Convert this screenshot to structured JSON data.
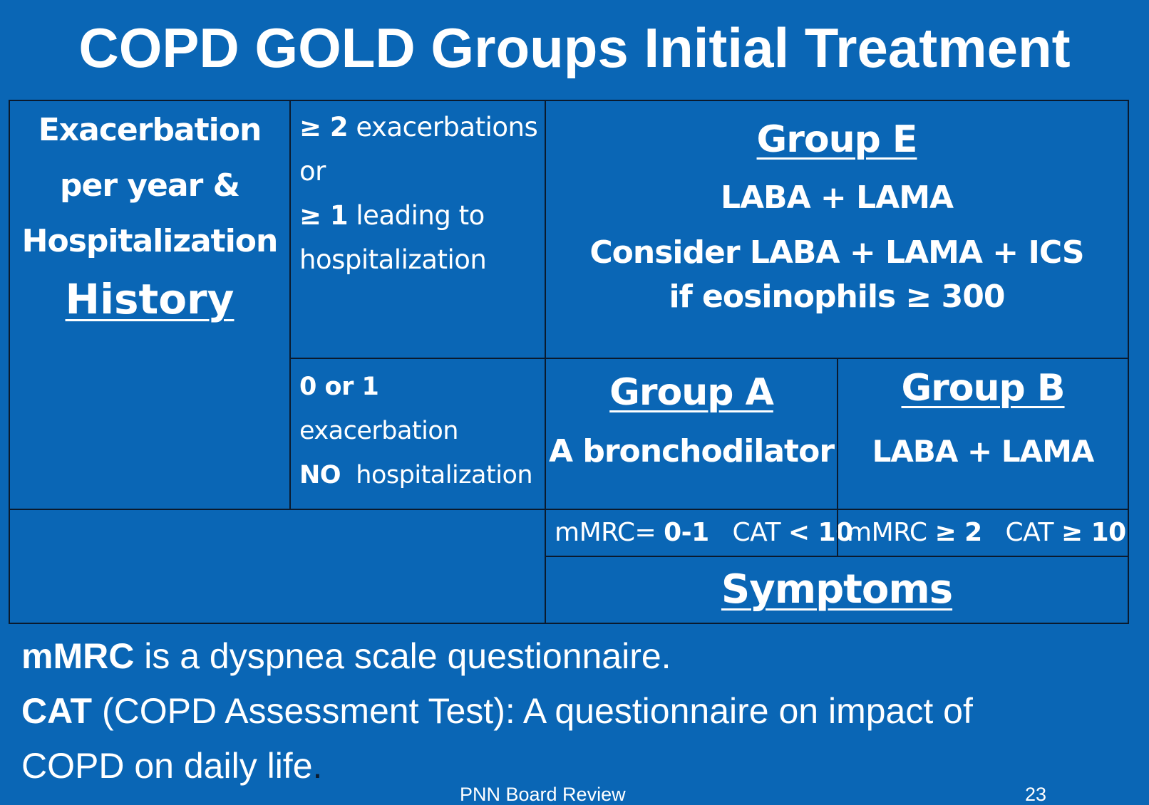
{
  "slide": {
    "title": "COPD GOLD Groups Initial Treatment",
    "footer_text": "PNN Board Review",
    "page_number": "23"
  },
  "history": {
    "line1": "Exacerbation",
    "line2": "per year &",
    "line3": "Hospitalization",
    "label": "History"
  },
  "criteria_high": {
    "l1_bold": "≥ 2",
    "l1_rest": " exacerbations",
    "l2": "or",
    "l3_bold": "≥  1",
    "l3_rest": " leading to",
    "l4": "hospitalization"
  },
  "criteria_low": {
    "l1_bold": "0 or 1",
    "l1_rest": " exacerbation",
    "l2_bold": "NO",
    "l2_rest": "  hospitalization"
  },
  "group_e": {
    "heading": "Group E",
    "treatment": "LABA + LAMA",
    "consider_line1": "Consider LABA + LAMA + ICS",
    "consider_line2": "if eosinophils ≥ 300"
  },
  "group_a": {
    "heading": "Group A",
    "treatment": "A bronchodilator"
  },
  "group_b": {
    "heading": "Group B",
    "treatment": "LABA + LAMA"
  },
  "symptoms_a": {
    "mmrc_label": "mMRC= ",
    "mmrc_value": "0-1",
    "cat_label": "   CAT ",
    "cat_value": "< 10"
  },
  "symptoms_b": {
    "mmrc_label": "mMRC ",
    "mmrc_value": "≥ 2",
    "cat_label": "   CAT ",
    "cat_value": "≥ 10"
  },
  "symptoms_label": "Symptoms",
  "notes": {
    "mmrc_term": "mMRC",
    "mmrc_desc": " is a dyspnea scale questionnaire.",
    "cat_term": "CAT",
    "cat_desc_line1": " (COPD Assessment Test): A questionnaire on impact of",
    "cat_desc_line2": "COPD on daily life",
    "cat_desc_end": "."
  },
  "colors": {
    "background": "#0a66b5",
    "text": "#ffffff",
    "grid_lines": "#0a1a2e"
  }
}
